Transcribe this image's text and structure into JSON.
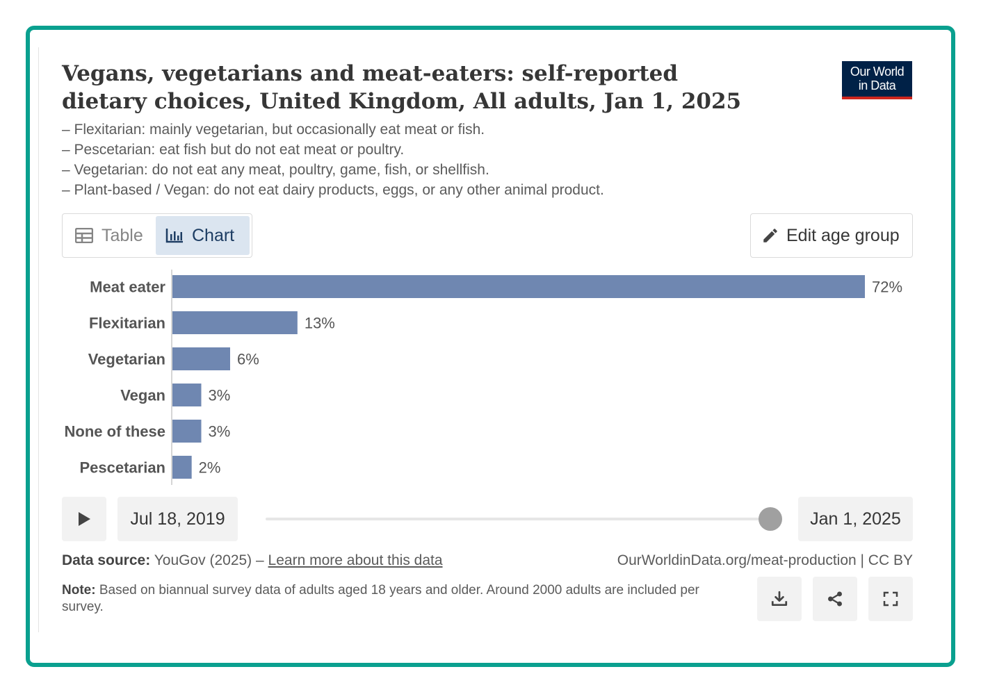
{
  "title": "Vegans, vegetarians and meat-eaters: self-reported dietary choices, United Kingdom, All adults, Jan 1, 2025",
  "subtitle_lines": [
    "– Flexitarian: mainly vegetarian, but occasionally eat meat or fish.",
    "– Pescetarian: eat fish but do not eat meat or poultry.",
    "– Vegetarian: do not eat any meat, poultry, game, fish, or shellfish.",
    "– Plant-based / Vegan: do not eat dairy products, eggs, or any other animal product."
  ],
  "logo": {
    "line1": "Our World",
    "line2": "in Data"
  },
  "tabs": {
    "table": "Table",
    "chart": "Chart",
    "active": "chart"
  },
  "edit_button": "Edit age group",
  "timeline": {
    "start": "Jul 18, 2019",
    "end": "Jan 1, 2025"
  },
  "footer": {
    "source_label": "Data source:",
    "source_text": "YouGov (2025) –",
    "source_link": "Learn more about this data",
    "url": "OurWorldinData.org/meat-production | CC BY",
    "note_label": "Note:",
    "note_text": "Based on biannual survey data of adults aged 18 years and older. Around 2000 adults are included per survey."
  },
  "colors": {
    "bar": "#6f87b1",
    "accent": "#0aa08f",
    "logo_bg": "#002147",
    "logo_stripe": "#ce261e"
  },
  "icons": {
    "play": "play-icon",
    "download": "download-icon",
    "share": "share-icon",
    "fullscreen": "fullscreen-icon",
    "edit": "pencil-icon",
    "table": "table-icon",
    "chart": "bar-chart-icon"
  },
  "chart_data": {
    "type": "bar",
    "orientation": "horizontal",
    "categories": [
      "Meat eater",
      "Flexitarian",
      "Vegetarian",
      "Vegan",
      "None of these",
      "Pescetarian"
    ],
    "values": [
      72,
      13,
      6,
      3,
      3,
      2
    ],
    "value_labels": [
      "72%",
      "13%",
      "6%",
      "3%",
      "3%",
      "2%"
    ],
    "unit": "%",
    "xlim": [
      0,
      72
    ],
    "grid": false,
    "legend": "none"
  }
}
